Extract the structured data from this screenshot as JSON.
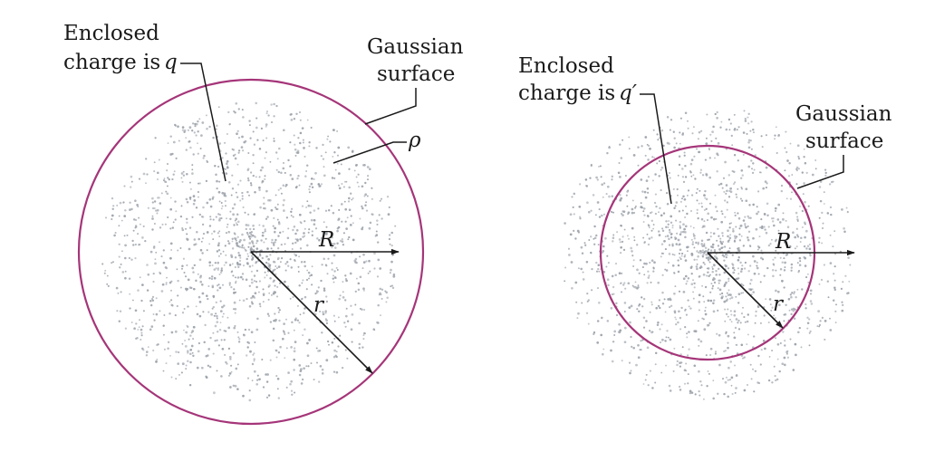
{
  "left": {
    "enclosed_line1": "Enclosed",
    "enclosed_line2": "charge is",
    "charge_symbol": "q",
    "gauss_line1": "Gaussian",
    "gauss_line2": "surface",
    "density_symbol": "ρ",
    "radius_R": "R",
    "radius_r": "r"
  },
  "right": {
    "enclosed_line1": "Enclosed",
    "enclosed_line2": "charge is",
    "charge_symbol": "q′",
    "gauss_line1": "Gaussian",
    "gauss_line2": "surface",
    "radius_R": "R",
    "radius_r": "r"
  },
  "colors": {
    "gaussian_surface": "#a53579",
    "charge_dots": "#9aa0a8",
    "ink": "#1a1a1a"
  }
}
